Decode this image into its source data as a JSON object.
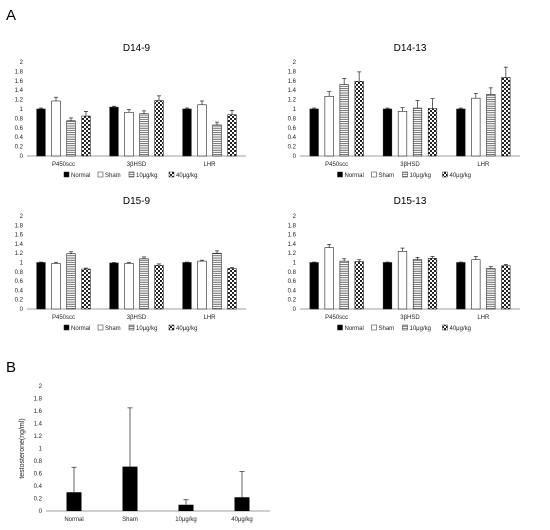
{
  "panel_labels": [
    "A",
    "B"
  ],
  "chart_data": [
    {
      "type": "bar",
      "title": "D14-9",
      "categories": [
        "P450scc",
        "3βHSD",
        "LHR"
      ],
      "ylim": [
        0,
        2
      ],
      "yticks": [
        "0",
        "0.2",
        "0.4",
        "0.6",
        "0.8",
        "1",
        "1.2",
        "1.4",
        "1.6",
        "1.8",
        "2"
      ],
      "legend": "bottom",
      "series": [
        {
          "name": "Normal",
          "values": [
            1.0,
            1.04,
            1.0
          ],
          "errors": [
            0.02,
            0.02,
            0.02
          ]
        },
        {
          "name": "Sham",
          "values": [
            1.17,
            0.93,
            1.09
          ],
          "errors": [
            0.08,
            0.06,
            0.08
          ]
        },
        {
          "name": "10μg/kg",
          "values": [
            0.75,
            0.9,
            0.66
          ],
          "errors": [
            0.06,
            0.06,
            0.06
          ]
        },
        {
          "name": "40μg/kg",
          "values": [
            0.85,
            1.18,
            0.88
          ],
          "errors": [
            0.1,
            0.1,
            0.09
          ]
        }
      ]
    },
    {
      "type": "bar",
      "title": "D14-13",
      "categories": [
        "P450scc",
        "3βHSD",
        "LHR"
      ],
      "ylim": [
        0,
        2
      ],
      "yticks": [
        "0",
        "0.2",
        "0.4",
        "0.6",
        "0.8",
        "1",
        "1.2",
        "1.4",
        "1.6",
        "1.8",
        "2"
      ],
      "legend": "bottom",
      "series": [
        {
          "name": "Normal",
          "values": [
            1.0,
            1.0,
            1.0
          ],
          "errors": [
            0.02,
            0.02,
            0.02
          ]
        },
        {
          "name": "Sham",
          "values": [
            1.27,
            0.95,
            1.23
          ],
          "errors": [
            0.1,
            0.08,
            0.1
          ]
        },
        {
          "name": "10μg/kg",
          "values": [
            1.52,
            1.02,
            1.31
          ],
          "errors": [
            0.13,
            0.16,
            0.14
          ]
        },
        {
          "name": "40μg/kg",
          "values": [
            1.59,
            1.01,
            1.67
          ],
          "errors": [
            0.2,
            0.21,
            0.22
          ]
        }
      ]
    },
    {
      "type": "bar",
      "title": "D15-9",
      "categories": [
        "P450scc",
        "3βHSD",
        "LHR"
      ],
      "ylim": [
        0,
        2
      ],
      "yticks": [
        "0",
        "0.2",
        "0.4",
        "0.6",
        "0.8",
        "1",
        "1.2",
        "1.4",
        "1.6",
        "1.8",
        "2"
      ],
      "legend": "bottom",
      "series": [
        {
          "name": "Normal",
          "values": [
            1.0,
            0.99,
            1.0
          ],
          "errors": [
            0.01,
            0.01,
            0.01
          ]
        },
        {
          "name": "Sham",
          "values": [
            0.98,
            0.98,
            1.03
          ],
          "errors": [
            0.02,
            0.02,
            0.02
          ]
        },
        {
          "name": "10μg/kg",
          "values": [
            1.19,
            1.08,
            1.2
          ],
          "errors": [
            0.04,
            0.04,
            0.05
          ]
        },
        {
          "name": "40μg/kg",
          "values": [
            0.86,
            0.94,
            0.87
          ],
          "errors": [
            0.02,
            0.03,
            0.02
          ]
        }
      ]
    },
    {
      "type": "bar",
      "title": "D15-13",
      "categories": [
        "P450scc",
        "3βHSD",
        "LHR"
      ],
      "ylim": [
        0,
        2
      ],
      "yticks": [
        "0",
        "0.2",
        "0.4",
        "0.6",
        "0.8",
        "1",
        "1.2",
        "1.4",
        "1.6",
        "1.8",
        "2"
      ],
      "legend": "bottom",
      "series": [
        {
          "name": "Normal",
          "values": [
            1.0,
            1.0,
            1.0
          ],
          "errors": [
            0.01,
            0.01,
            0.01
          ]
        },
        {
          "name": "Sham",
          "values": [
            1.32,
            1.24,
            1.06
          ],
          "errors": [
            0.07,
            0.07,
            0.07
          ]
        },
        {
          "name": "10μg/kg",
          "values": [
            1.03,
            1.06,
            0.87
          ],
          "errors": [
            0.05,
            0.05,
            0.04
          ]
        },
        {
          "name": "40μg/kg",
          "values": [
            1.02,
            1.09,
            0.93
          ],
          "errors": [
            0.04,
            0.04,
            0.03
          ]
        }
      ]
    },
    {
      "type": "bar",
      "title": "",
      "categories": [
        "Normal",
        "Sham",
        "10μg/kg",
        "40μg/kg"
      ],
      "ylabel": "testosterone(ng/ml)",
      "ylim": [
        0,
        2
      ],
      "yticks": [
        "0",
        "0.2",
        "0.4",
        "0.6",
        "0.8",
        "1",
        "1.2",
        "1.4",
        "1.6",
        "1.8",
        "2"
      ],
      "series": [
        {
          "values": [
            0.3,
            0.71,
            0.1,
            0.22
          ],
          "errors": [
            0.4,
            0.94,
            0.08,
            0.41
          ]
        }
      ]
    }
  ]
}
